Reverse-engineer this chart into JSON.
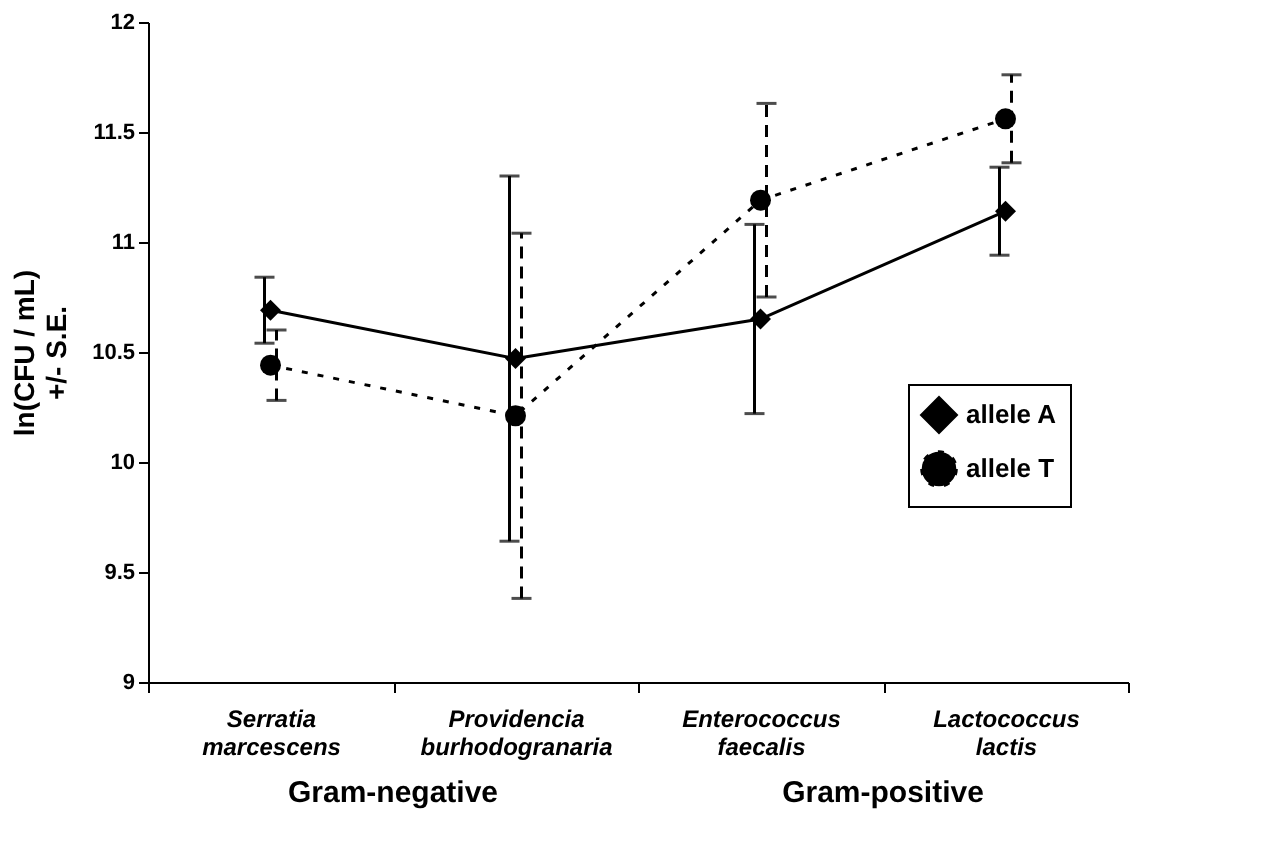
{
  "chart_data": {
    "type": "line",
    "categories": [
      "Serratia marcescens",
      "Providencia burhodogranaria",
      "Enterococcus faecalis",
      "Lactococcus lactis"
    ],
    "ylabel": "ln(CFU / mL)\n+/- S.E.",
    "ylim": [
      9,
      12
    ],
    "yticks": [
      9,
      9.5,
      10,
      10.5,
      11,
      11.5,
      12
    ],
    "series": [
      {
        "name": "allele A",
        "color": "#000000",
        "values": [
          10.69,
          10.47,
          10.65,
          11.14
        ],
        "errors": [
          0.15,
          0.83,
          0.43,
          0.2
        ],
        "marker": "diamond",
        "line_style": "solid"
      },
      {
        "name": "allele T",
        "color": "#000000",
        "values": [
          10.44,
          10.21,
          11.19,
          11.56
        ],
        "errors": [
          0.16,
          0.83,
          0.44,
          0.2
        ],
        "marker": "circle",
        "line_style": "dotted"
      }
    ],
    "annotations": [
      "Gram-negative",
      "Gram-positive"
    ],
    "legend": "right",
    "grid": false
  }
}
